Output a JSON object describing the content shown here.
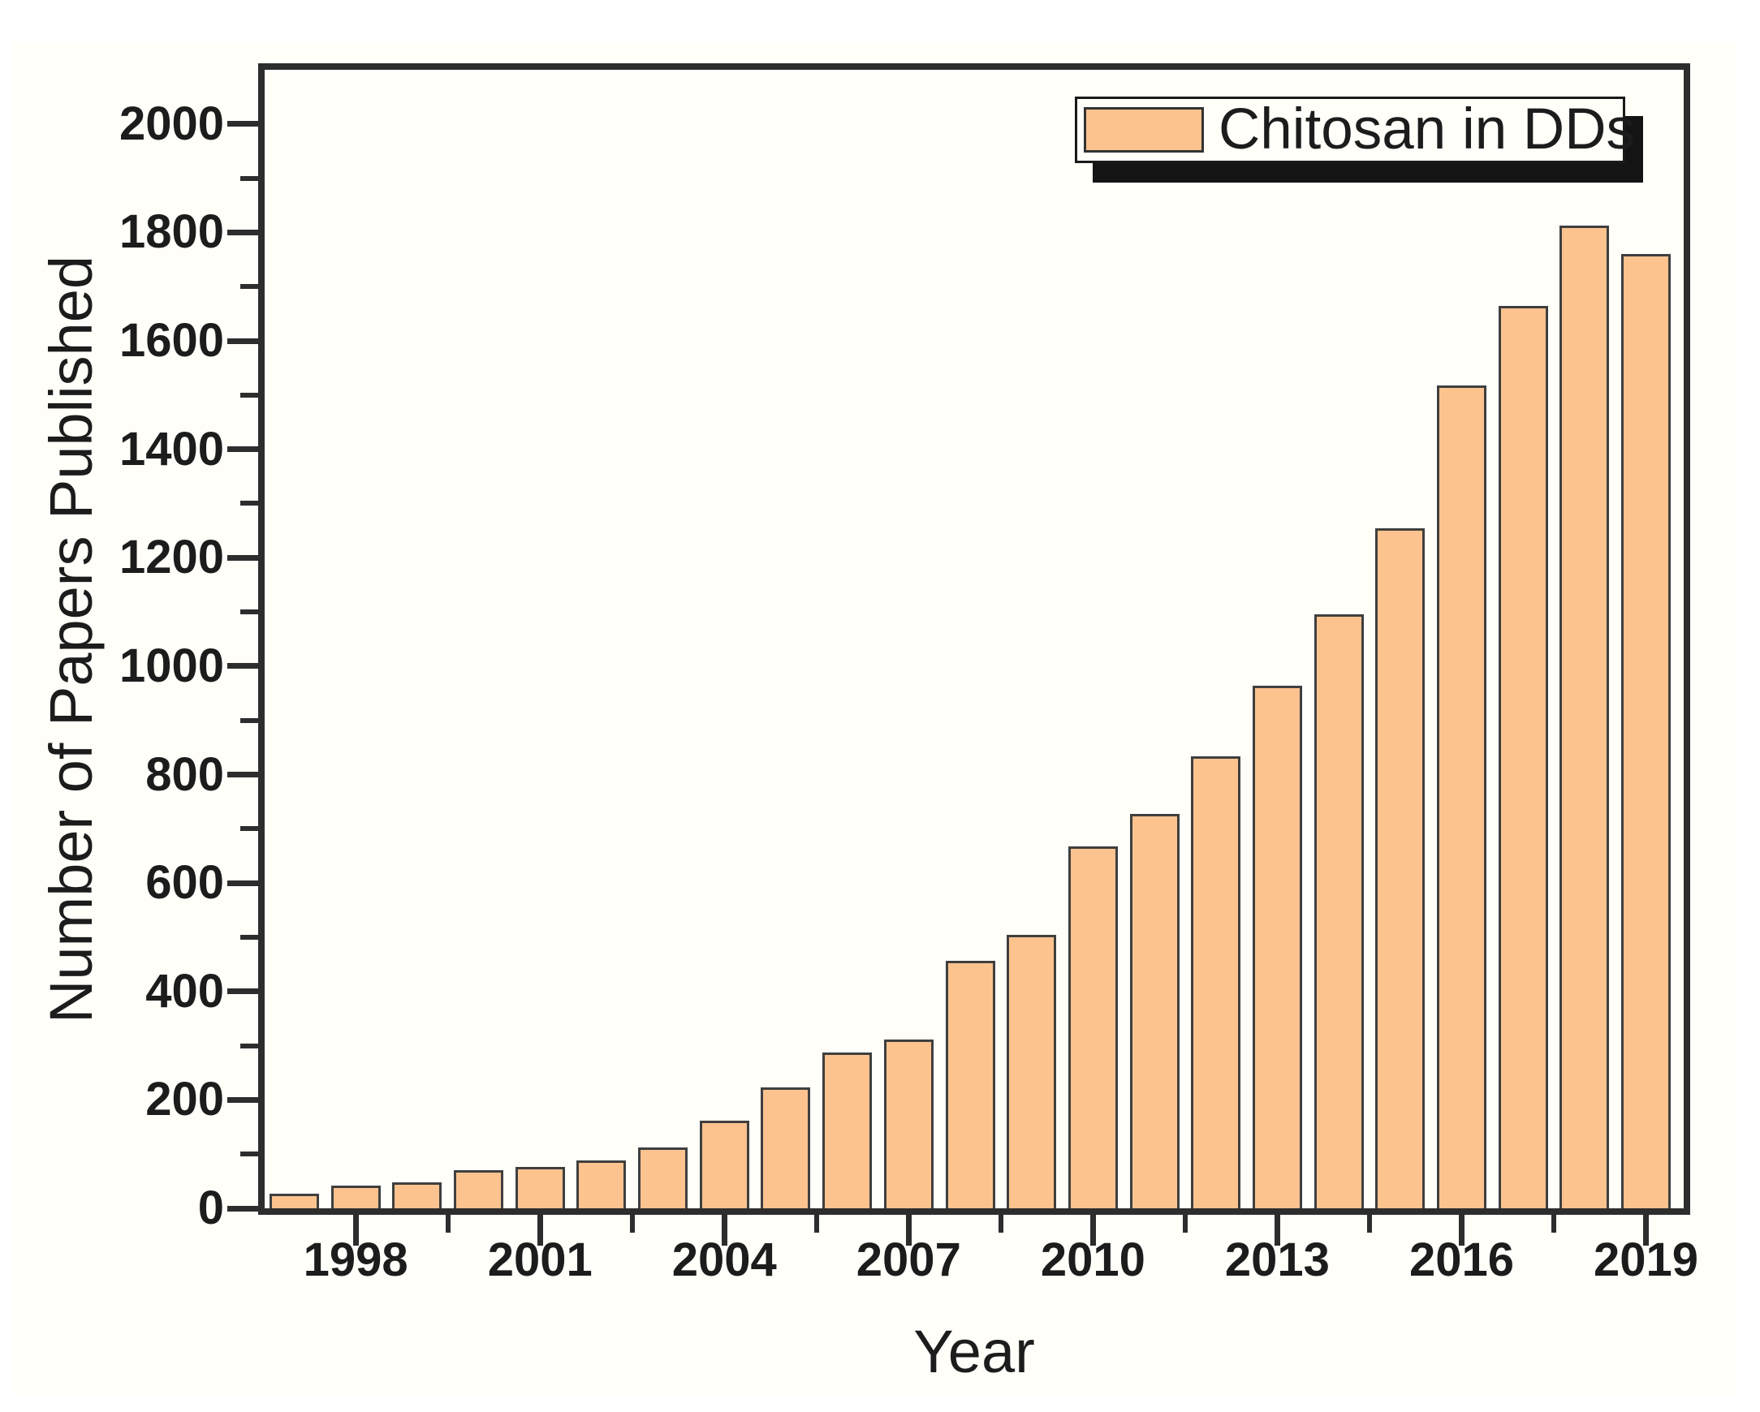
{
  "chart_data": {
    "type": "bar",
    "title": "",
    "categories": [
      1997,
      1998,
      1999,
      2000,
      2001,
      2002,
      2003,
      2004,
      2005,
      2006,
      2007,
      2008,
      2009,
      2010,
      2011,
      2012,
      2013,
      2014,
      2015,
      2016,
      2017,
      2018,
      2019
    ],
    "series": [
      {
        "name": "Chitosan in DDs",
        "values": [
          27,
          42,
          48,
          70,
          77,
          89,
          113,
          161,
          223,
          288,
          312,
          457,
          504,
          667,
          727,
          833,
          964,
          1096,
          1255,
          1518,
          1664,
          1813,
          1760
        ]
      }
    ],
    "xlabel": "Year",
    "ylabel": "Number of Papers Published",
    "ylim": [
      0,
      2100
    ],
    "y_major_ticks": [
      0,
      200,
      400,
      600,
      800,
      1000,
      1200,
      1400,
      1600,
      1800,
      2000
    ],
    "y_minor_ticks": [
      100,
      300,
      500,
      700,
      900,
      1100,
      1300,
      1500,
      1700,
      1900
    ],
    "x_labeled_years": [
      1998,
      2001,
      2004,
      2007,
      2010,
      2013,
      2016,
      2019
    ],
    "grid": false,
    "legend_position": "top-right",
    "colors": {
      "bar_fill": "#fcc38f",
      "bar_border": "#3f3f3f",
      "axis": "#2d2d2d",
      "background": "#fffef9",
      "legend_shadow": "#141414",
      "text": "#1c1c1c"
    }
  }
}
